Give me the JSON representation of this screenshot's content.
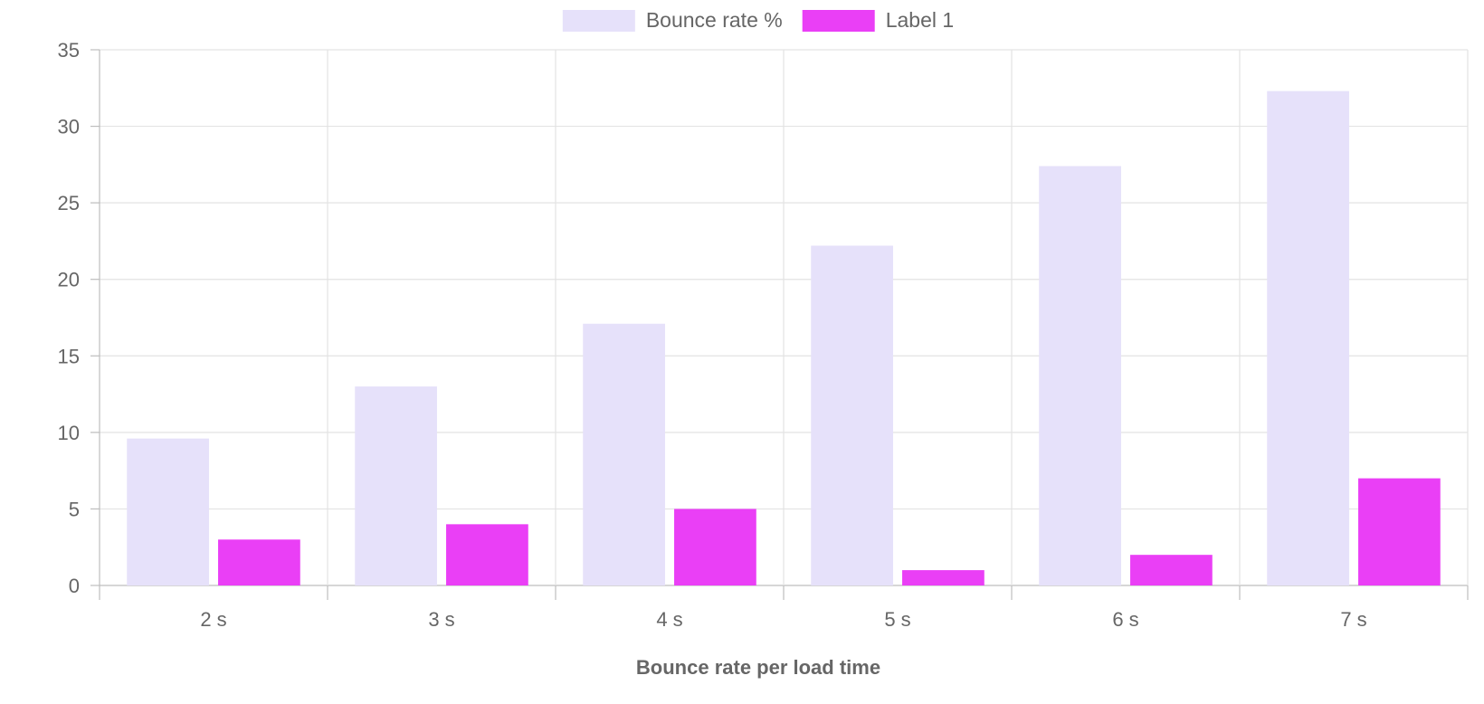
{
  "chart_data": {
    "type": "bar",
    "title": "",
    "xlabel": "Bounce rate per load time",
    "ylabel": "",
    "categories": [
      "2 s",
      "3 s",
      "4 s",
      "5 s",
      "6 s",
      "7 s"
    ],
    "series": [
      {
        "name": "Bounce rate %",
        "values": [
          9.6,
          13.0,
          17.1,
          22.2,
          27.4,
          32.3
        ],
        "color": "#e6e1fa"
      },
      {
        "name": "Label 1",
        "values": [
          3,
          4,
          5,
          1,
          2,
          7
        ],
        "color": "#ea3ff6"
      }
    ],
    "ylim": [
      0,
      35
    ],
    "yticks": [
      0,
      5,
      10,
      15,
      20,
      25,
      30,
      35
    ],
    "grid": true,
    "legend_position": "top-center"
  }
}
